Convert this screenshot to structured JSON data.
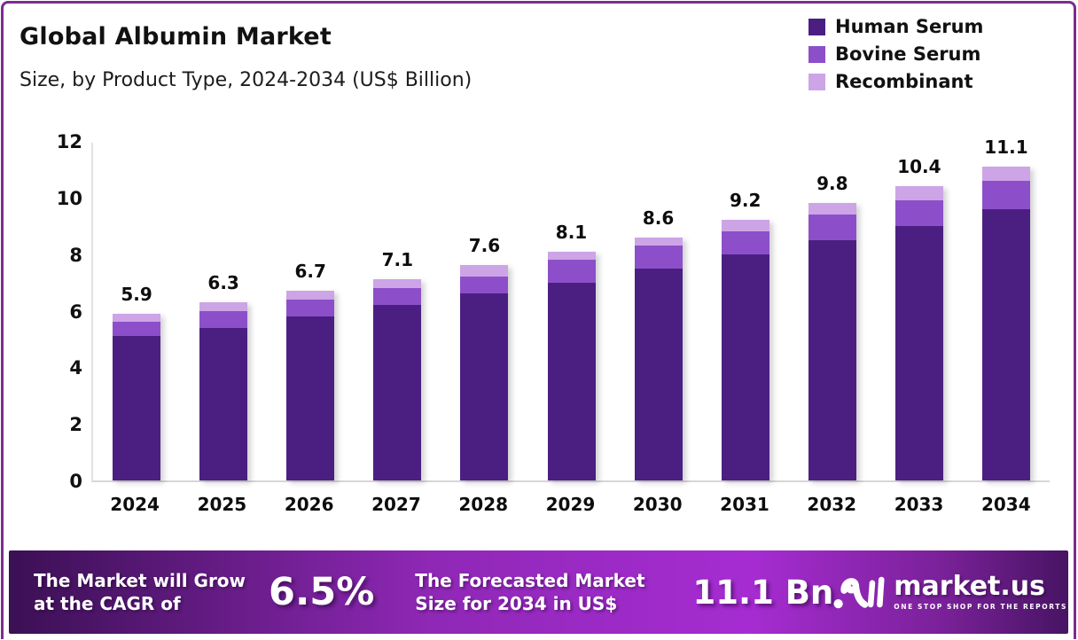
{
  "header": {
    "title": "Global Albumin Market",
    "subtitle": "Size, by Product Type, 2024-2034 (US$ Billion)"
  },
  "chart_data": {
    "type": "bar",
    "stacked": true,
    "title": "Global Albumin Market",
    "subtitle": "Size, by Product Type, 2024-2034 (US$ Billion)",
    "unit": "US$ Billion",
    "categories": [
      "2024",
      "2025",
      "2026",
      "2027",
      "2028",
      "2029",
      "2030",
      "2031",
      "2032",
      "2033",
      "2034"
    ],
    "totals": [
      "5.9",
      "6.3",
      "6.7",
      "7.1",
      "7.6",
      "8.1",
      "8.6",
      "9.2",
      "9.8",
      "10.4",
      "11.1"
    ],
    "series": [
      {
        "name": "Human Serum",
        "color": "#4B1F82",
        "values": [
          5.1,
          5.4,
          5.8,
          6.2,
          6.6,
          7.0,
          7.5,
          8.0,
          8.5,
          9.0,
          9.6
        ]
      },
      {
        "name": "Bovine Serum",
        "color": "#8C4FC9",
        "values": [
          0.5,
          0.6,
          0.6,
          0.6,
          0.6,
          0.8,
          0.8,
          0.8,
          0.9,
          0.9,
          1.0
        ]
      },
      {
        "name": "Recombinant",
        "color": "#CDA4E6",
        "values": [
          0.3,
          0.3,
          0.3,
          0.3,
          0.4,
          0.3,
          0.3,
          0.4,
          0.4,
          0.5,
          0.5
        ]
      }
    ],
    "yticks": [
      0,
      2,
      4,
      6,
      8,
      10,
      12
    ],
    "ylim": [
      0,
      12
    ],
    "legend_position": "top-right",
    "grid": false
  },
  "banner": {
    "cagr_label_line1": "The Market will Grow",
    "cagr_label_line2": "at the CAGR of",
    "cagr_value": "6.5%",
    "forecast_label_line1": "The Forecasted Market",
    "forecast_label_line2": "Size for 2034 in US$",
    "forecast_value": "11.1 Bn",
    "logo_text": "market.us",
    "logo_tagline": "ONE STOP SHOP FOR THE REPORTS"
  },
  "colors": {
    "frame_border": "#7C2D8F",
    "axis_line": "#D8D8D8",
    "banner_gradient": [
      "#3B1054",
      "#8F28B6",
      "#A62CD2",
      "#7A2199",
      "#471463"
    ],
    "text": "#111111",
    "banner_text": "#FFFFFF"
  }
}
